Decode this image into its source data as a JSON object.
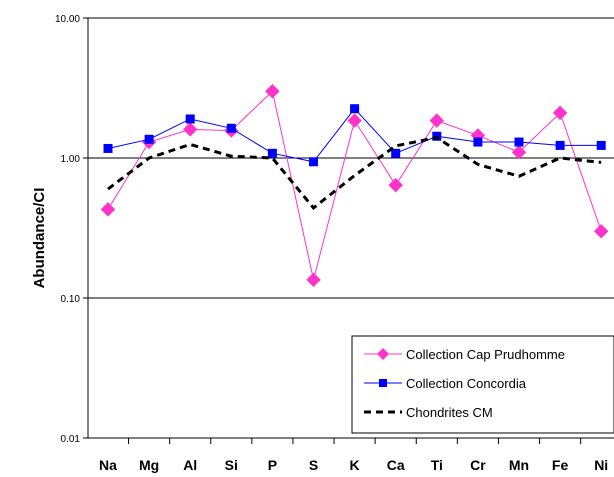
{
  "chart_data": {
    "type": "line",
    "title": "",
    "xlabel": "",
    "ylabel": "Abundance/CI",
    "yscale": "log",
    "ylim": [
      0.01,
      10
    ],
    "y_ticks": [
      "10.00",
      "1.00",
      "0.10",
      "0.01"
    ],
    "categories": [
      "Na",
      "Mg",
      "Al",
      "Si",
      "P",
      "S",
      "K",
      "Ca",
      "Ti",
      "Cr",
      "Mn",
      "Fe",
      "Ni"
    ],
    "grid": "horizontal",
    "legend_position": "bottom-right",
    "series": [
      {
        "name": "Collection Cap Prudhomme",
        "color": "#ff33cc",
        "marker": "diamond",
        "values": [
          0.43,
          1.3,
          1.6,
          1.57,
          3.0,
          0.135,
          1.85,
          0.64,
          1.85,
          1.45,
          1.1,
          2.1,
          0.3
        ]
      },
      {
        "name": "Collection Concordia",
        "color": "#0000ff",
        "marker": "square",
        "values": [
          1.17,
          1.36,
          1.9,
          1.63,
          1.08,
          0.94,
          2.25,
          1.08,
          1.43,
          1.3,
          1.3,
          1.23,
          1.23
        ]
      },
      {
        "name": "Chondrites CM",
        "color": "#000000",
        "marker": "none",
        "dashed": true,
        "values": [
          0.6,
          1.0,
          1.25,
          1.03,
          1.0,
          0.44,
          0.75,
          1.22,
          1.4,
          0.9,
          0.74,
          1.0,
          0.93
        ]
      }
    ]
  }
}
